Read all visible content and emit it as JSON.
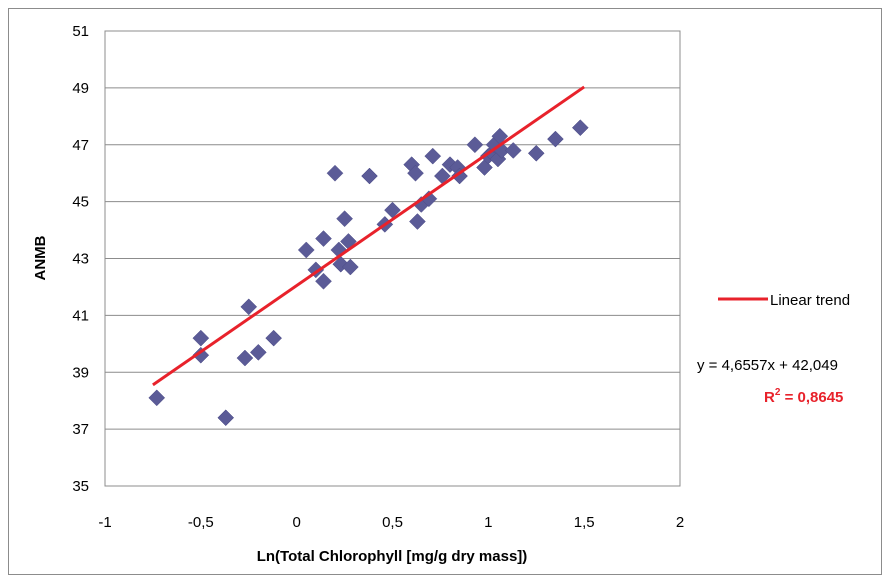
{
  "chart_data": {
    "type": "scatter",
    "title": "",
    "xlabel": "Ln(Total Chlorophyll [mg/g dry mass])",
    "ylabel": "ANMB",
    "xlim": [
      -1,
      2
    ],
    "ylim": [
      35,
      51
    ],
    "xticks": [
      -1,
      -0.5,
      0,
      0.5,
      1,
      1.5,
      2
    ],
    "yticks": [
      35,
      37,
      39,
      41,
      43,
      45,
      47,
      49,
      51
    ],
    "xtick_labels": [
      "-1",
      "-0,5",
      "0",
      "0,5",
      "1",
      "1,5",
      "2"
    ],
    "ytick_labels": [
      "35",
      "37",
      "39",
      "41",
      "43",
      "45",
      "47",
      "49",
      "51"
    ],
    "grid": "horizontal",
    "legend_position": "right",
    "series": [
      {
        "marker": "diamond",
        "color": "#5b5b97",
        "points": [
          [
            -0.73,
            38.1
          ],
          [
            -0.5,
            39.6
          ],
          [
            -0.5,
            40.2
          ],
          [
            -0.37,
            37.4
          ],
          [
            -0.27,
            39.5
          ],
          [
            -0.25,
            41.3
          ],
          [
            -0.2,
            39.7
          ],
          [
            -0.12,
            40.2
          ],
          [
            0.05,
            43.3
          ],
          [
            0.1,
            42.6
          ],
          [
            0.14,
            43.7
          ],
          [
            0.14,
            42.2
          ],
          [
            0.2,
            46.0
          ],
          [
            0.22,
            43.3
          ],
          [
            0.23,
            42.8
          ],
          [
            0.25,
            44.4
          ],
          [
            0.27,
            43.6
          ],
          [
            0.28,
            42.7
          ],
          [
            0.38,
            45.9
          ],
          [
            0.46,
            44.2
          ],
          [
            0.5,
            44.7
          ],
          [
            0.6,
            46.3
          ],
          [
            0.62,
            46.0
          ],
          [
            0.63,
            44.3
          ],
          [
            0.65,
            44.9
          ],
          [
            0.69,
            45.1
          ],
          [
            0.71,
            46.6
          ],
          [
            0.76,
            45.9
          ],
          [
            0.8,
            46.3
          ],
          [
            0.84,
            46.2
          ],
          [
            0.85,
            45.9
          ],
          [
            0.93,
            47.0
          ],
          [
            0.98,
            46.2
          ],
          [
            1.0,
            46.6
          ],
          [
            1.02,
            46.7
          ],
          [
            1.03,
            47.0
          ],
          [
            1.05,
            46.5
          ],
          [
            1.06,
            47.3
          ],
          [
            1.07,
            46.8
          ],
          [
            1.13,
            46.8
          ],
          [
            1.25,
            46.7
          ],
          [
            1.35,
            47.2
          ],
          [
            1.48,
            47.6
          ]
        ]
      }
    ],
    "trendline": {
      "name": "Linear trend",
      "color": "#e8222b",
      "slope": 4.6557,
      "intercept": 42.049,
      "x_range": [
        -0.75,
        1.5
      ],
      "equation": "y = 4,6557x + 42,049",
      "r2_label": "R",
      "r2_sup": "2",
      "r2_value": " = 0,8645",
      "r2_color": "#e8222b"
    }
  }
}
